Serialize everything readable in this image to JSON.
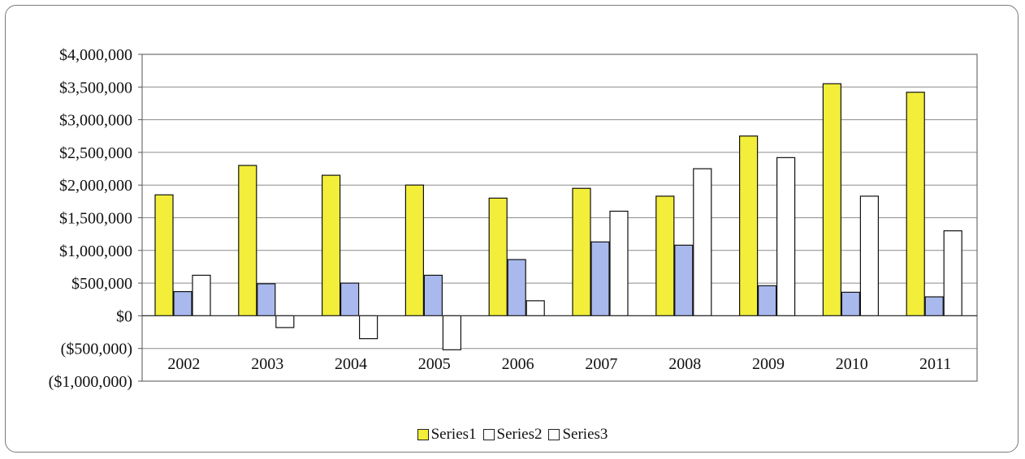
{
  "chart_data": {
    "type": "bar",
    "categories": [
      "2002",
      "2003",
      "2004",
      "2005",
      "2006",
      "2007",
      "2008",
      "2009",
      "2010",
      "2011"
    ],
    "series": [
      {
        "name": "Series1",
        "color": "#f2ee3a",
        "values": [
          1850000,
          2300000,
          2150000,
          2000000,
          1800000,
          1950000,
          1830000,
          2750000,
          3550000,
          3420000
        ]
      },
      {
        "name": "Series2",
        "color": "#a9b9ee",
        "values": [
          370000,
          490000,
          500000,
          620000,
          860000,
          1130000,
          1080000,
          460000,
          360000,
          290000
        ]
      },
      {
        "name": "Series3",
        "color": "#ffffff",
        "values": [
          620000,
          -180000,
          -350000,
          -520000,
          230000,
          1600000,
          2250000,
          2420000,
          1830000,
          1300000
        ]
      }
    ],
    "ylim": [
      -1000000,
      4000000
    ],
    "ytick_labels": [
      "$4,000,000",
      "$3,500,000",
      "$3,000,000",
      "$2,500,000",
      "$2,000,000",
      "$1,500,000",
      "$1,000,000",
      "$500,000",
      "$0",
      "($500,000)",
      "($1,000,000)"
    ],
    "ytick_values": [
      4000000,
      3500000,
      3000000,
      2500000,
      2000000,
      1500000,
      1000000,
      500000,
      0,
      -500000,
      -1000000
    ],
    "grid": true,
    "legend_position": "bottom",
    "legend_entries": [
      "Series1",
      "Series2",
      "Series3"
    ],
    "title": "",
    "xlabel": "",
    "ylabel": ""
  }
}
